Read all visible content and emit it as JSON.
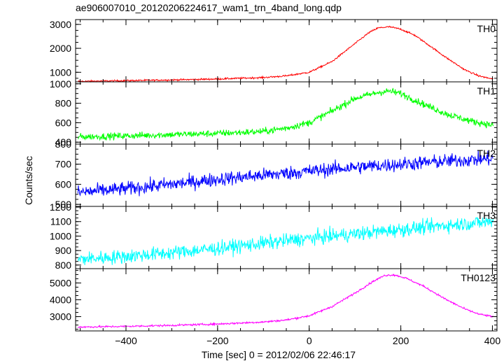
{
  "title": "ae906007010_20120206224617_wam1_trn_4band_long.qdp",
  "ylabel": "Counts/sec",
  "xlabel": "Time [sec] 0 = 2012/02/06 22:46:17",
  "chart_data": {
    "type": "line",
    "x_axis": {
      "range": [
        -510,
        410
      ],
      "ticks": [
        -400,
        -200,
        0,
        200,
        400
      ],
      "tick_labels": [
        "−400",
        "−200",
        "0",
        "200",
        "400"
      ]
    },
    "panels": [
      {
        "name": "TH0",
        "color": "#ff0000",
        "ylim": [
          600,
          3200
        ],
        "y_ticks": [
          1000,
          2000,
          3000
        ],
        "y_tick_labels": [
          "1000",
          "2000",
          "3000"
        ],
        "noise": 25,
        "curve": [
          [
            -500,
            620
          ],
          [
            -400,
            650
          ],
          [
            -300,
            680
          ],
          [
            -200,
            720
          ],
          [
            -100,
            780
          ],
          [
            -50,
            850
          ],
          [
            0,
            1000
          ],
          [
            50,
            1450
          ],
          [
            100,
            2200
          ],
          [
            130,
            2650
          ],
          [
            150,
            2850
          ],
          [
            175,
            2900
          ],
          [
            200,
            2800
          ],
          [
            230,
            2550
          ],
          [
            260,
            2150
          ],
          [
            300,
            1600
          ],
          [
            340,
            1100
          ],
          [
            370,
            850
          ],
          [
            400,
            720
          ]
        ]
      },
      {
        "name": "TH1",
        "color": "#00ff00",
        "ylim": [
          380,
          1020
        ],
        "y_ticks": [
          400,
          600,
          800,
          1000
        ],
        "y_tick_labels": [
          "400",
          "600",
          "800",
          "1000"
        ],
        "noise": 25,
        "curve": [
          [
            -500,
            455
          ],
          [
            -400,
            465
          ],
          [
            -300,
            478
          ],
          [
            -200,
            490
          ],
          [
            -100,
            510
          ],
          [
            -50,
            545
          ],
          [
            0,
            600
          ],
          [
            50,
            720
          ],
          [
            100,
            850
          ],
          [
            150,
            910
          ],
          [
            175,
            925
          ],
          [
            200,
            900
          ],
          [
            250,
            790
          ],
          [
            300,
            690
          ],
          [
            350,
            620
          ],
          [
            400,
            575
          ]
        ]
      },
      {
        "name": "TH2",
        "color": "#0000ff",
        "ylim": [
          490,
          800
        ],
        "y_ticks": [
          500,
          600,
          700,
          800
        ],
        "y_tick_labels": [
          "500",
          "600",
          "700",
          "800"
        ],
        "noise": 25,
        "curve": [
          [
            -500,
            560
          ],
          [
            -400,
            578
          ],
          [
            -300,
            600
          ],
          [
            -200,
            625
          ],
          [
            -100,
            645
          ],
          [
            0,
            665
          ],
          [
            100,
            685
          ],
          [
            200,
            700
          ],
          [
            300,
            715
          ],
          [
            400,
            728
          ]
        ]
      },
      {
        "name": "TH3",
        "color": "#00ffff",
        "ylim": [
          775,
          1205
        ],
        "y_ticks": [
          800,
          900,
          1000,
          1100,
          1200
        ],
        "y_tick_labels": [
          "800",
          "900",
          "1000",
          "1100",
          "1200"
        ],
        "noise": 35,
        "curve": [
          [
            -500,
            840
          ],
          [
            -400,
            860
          ],
          [
            -300,
            885
          ],
          [
            -200,
            915
          ],
          [
            -100,
            950
          ],
          [
            0,
            985
          ],
          [
            100,
            1015
          ],
          [
            200,
            1045
          ],
          [
            300,
            1075
          ],
          [
            400,
            1100
          ]
        ]
      },
      {
        "name": "TH0123",
        "color": "#ff00ff",
        "ylim": [
          2150,
          5850
        ],
        "y_ticks": [
          3000,
          4000,
          5000
        ],
        "y_tick_labels": [
          "3000",
          "4000",
          "5000"
        ],
        "noise": 40,
        "curve": [
          [
            -500,
            2380
          ],
          [
            -400,
            2420
          ],
          [
            -300,
            2480
          ],
          [
            -200,
            2560
          ],
          [
            -100,
            2680
          ],
          [
            -50,
            2800
          ],
          [
            0,
            3050
          ],
          [
            50,
            3600
          ],
          [
            100,
            4400
          ],
          [
            140,
            5100
          ],
          [
            165,
            5450
          ],
          [
            185,
            5480
          ],
          [
            210,
            5300
          ],
          [
            250,
            4800
          ],
          [
            300,
            4000
          ],
          [
            340,
            3450
          ],
          [
            370,
            3150
          ],
          [
            400,
            3000
          ]
        ]
      }
    ]
  }
}
